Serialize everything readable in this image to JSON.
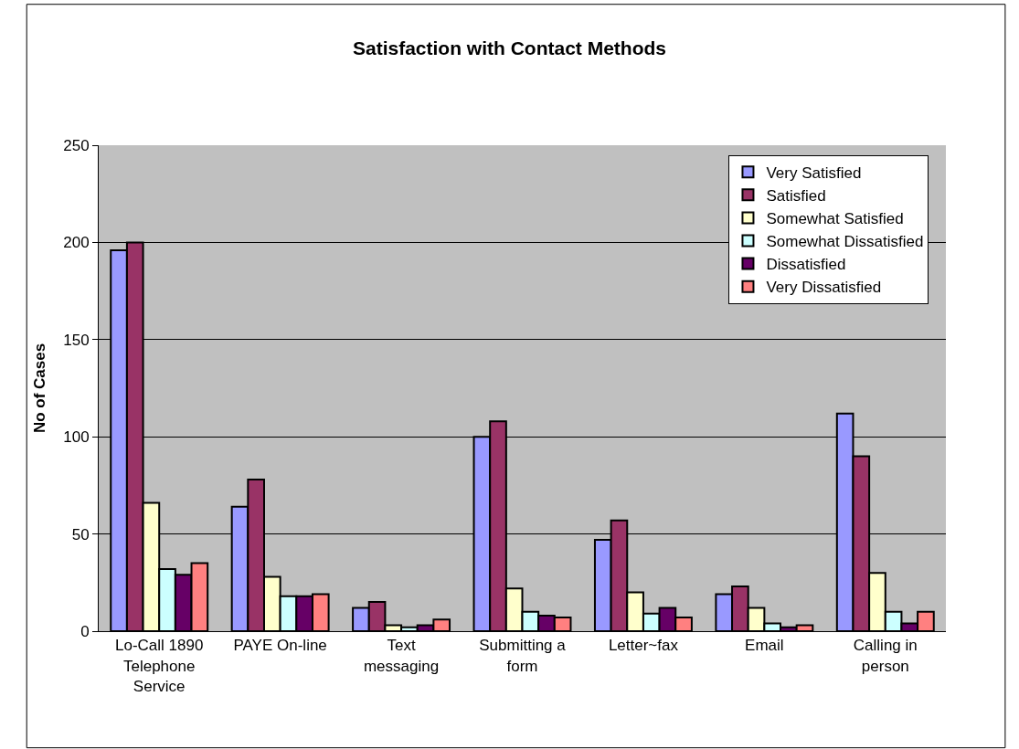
{
  "chart_data": {
    "type": "bar",
    "title": "Satisfaction with Contact Methods",
    "ylabel": "No of Cases",
    "categories": [
      "Lo-Call 1890 Telephone Service",
      "PAYE On-line",
      "Text messaging",
      "Submitting a form",
      "Letter~fax",
      "Email",
      "Calling in person"
    ],
    "series": [
      {
        "name": "Very Satisfied",
        "color": "#9999ff",
        "values": [
          196,
          64,
          12,
          100,
          47,
          19,
          112
        ]
      },
      {
        "name": "Satisfied",
        "color": "#993366",
        "values": [
          200,
          78,
          15,
          108,
          57,
          23,
          90
        ]
      },
      {
        "name": "Somewhat Satisfied",
        "color": "#ffffcc",
        "values": [
          66,
          28,
          3,
          22,
          20,
          12,
          30
        ]
      },
      {
        "name": "Somewhat Dissatisfied",
        "color": "#ccffff",
        "values": [
          32,
          18,
          2,
          10,
          9,
          4,
          10
        ]
      },
      {
        "name": "Dissatisfied",
        "color": "#660066",
        "values": [
          29,
          18,
          3,
          8,
          12,
          2,
          4
        ]
      },
      {
        "name": "Very Dissatisfied",
        "color": "#ff8080",
        "values": [
          35,
          19,
          6,
          7,
          7,
          3,
          10
        ]
      }
    ],
    "ylim": [
      0,
      250
    ],
    "yticks": [
      0,
      50,
      100,
      150,
      200,
      250
    ],
    "grid": "y",
    "legend": "top right"
  }
}
